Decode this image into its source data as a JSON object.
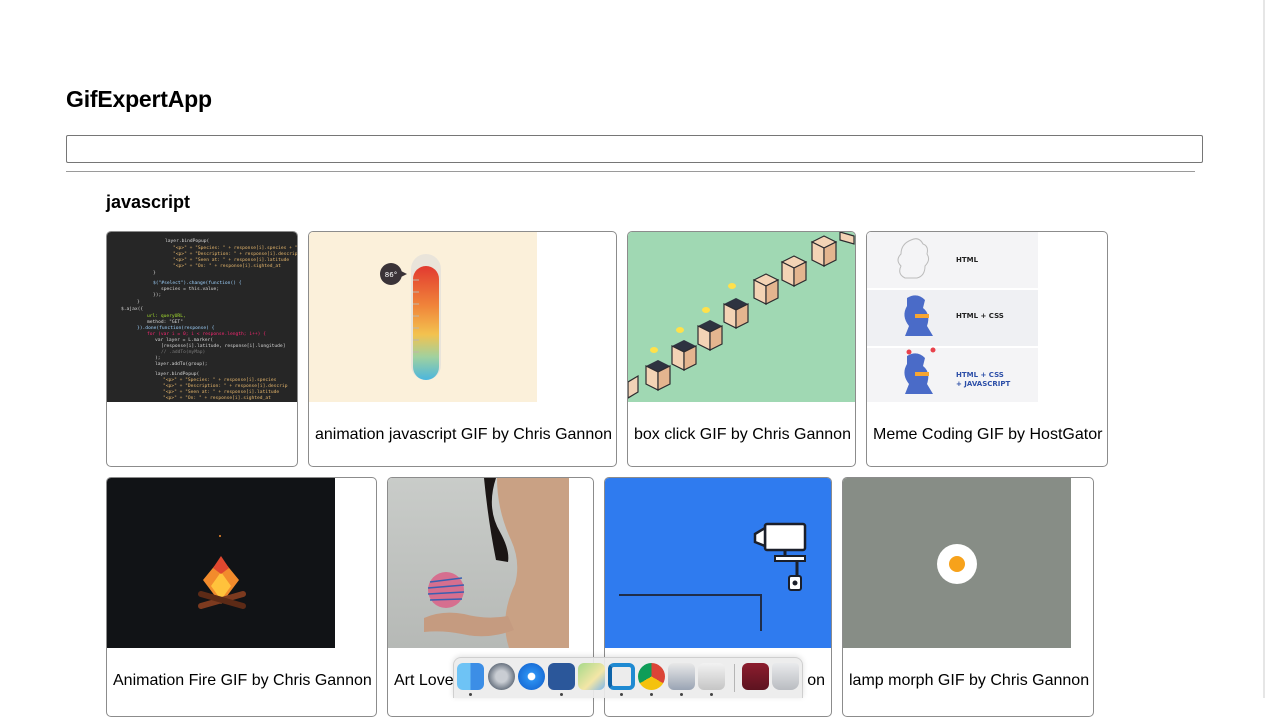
{
  "app": {
    "title": "GifExpertApp"
  },
  "search": {
    "value": "",
    "placeholder": ""
  },
  "category": {
    "title": "javascript"
  },
  "gifs": [
    {
      "title": ""
    },
    {
      "title": "animation javascript GIF by Chris Gannon"
    },
    {
      "title": "box click GIF by Chris Gannon"
    },
    {
      "title": "Meme Coding GIF by HostGator"
    },
    {
      "title": "Animation Fire GIF by Chris Gannon"
    },
    {
      "title": "Art Love"
    },
    {
      "title": "on"
    },
    {
      "title": "lamp morph GIF by Chris Gannon"
    }
  ],
  "thermometer": {
    "reading": "86°"
  },
  "hostgator": {
    "labels": [
      "HTML",
      "HTML + CSS",
      "HTML + CSS",
      "+ JAVASCRIPT"
    ]
  },
  "dock": {
    "apps": [
      "finder-icon",
      "launchpad-icon",
      "safari-icon",
      "word-icon",
      "maps-icon",
      "vscode-icon",
      "chrome-icon",
      "preview-icon",
      "utility-icon",
      "photos-icon",
      "trash-icon"
    ]
  },
  "colors": {
    "cream": "#fbf0da",
    "mint": "#a0d8b3",
    "blue": "#2f7bef",
    "gray": "#878d86",
    "dark": "#111316"
  }
}
